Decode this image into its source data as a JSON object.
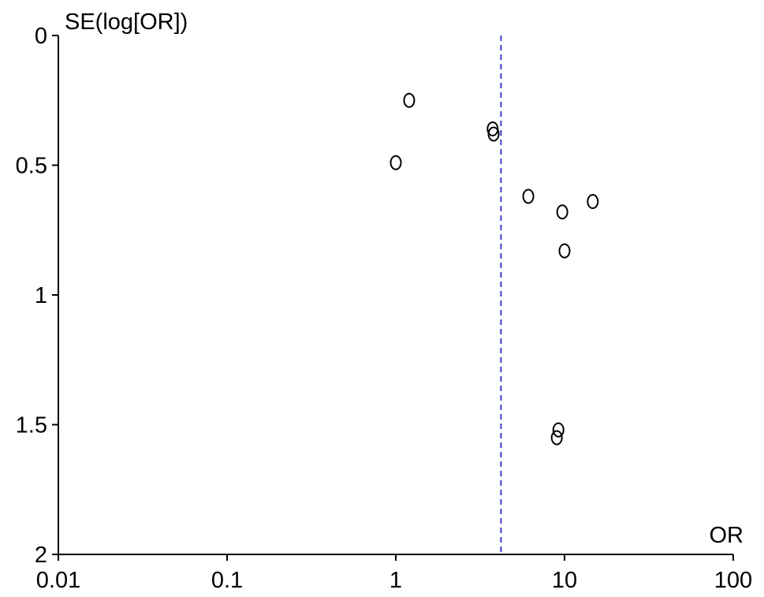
{
  "chart_data": {
    "type": "scatter",
    "title": "",
    "xlabel": "OR",
    "ylabel": "SE(log[OR])",
    "x_scale": "log",
    "y_reversed": true,
    "xlim": [
      0.01,
      100
    ],
    "ylim": [
      0,
      2
    ],
    "x_ticks": [
      "0.01",
      "0.1",
      "1",
      "10",
      "100"
    ],
    "x_tick_values": [
      0.01,
      0.1,
      1,
      10,
      100
    ],
    "y_ticks": [
      "0",
      "0.5",
      "1",
      "1.5",
      "2"
    ],
    "y_tick_values": [
      0,
      0.5,
      1,
      1.5,
      2
    ],
    "grid": false,
    "legend": "none",
    "reference_line": {
      "x": 4.2,
      "style": "dashed",
      "color": "#3b3bd6"
    },
    "marker": "open-circle",
    "points": [
      {
        "x": 1.2,
        "y": 0.25
      },
      {
        "x": 3.75,
        "y": 0.36
      },
      {
        "x": 3.8,
        "y": 0.38
      },
      {
        "x": 1.0,
        "y": 0.49
      },
      {
        "x": 6.1,
        "y": 0.62
      },
      {
        "x": 14.7,
        "y": 0.64
      },
      {
        "x": 9.7,
        "y": 0.68
      },
      {
        "x": 10.0,
        "y": 0.83
      },
      {
        "x": 9.2,
        "y": 1.52
      },
      {
        "x": 9.0,
        "y": 1.55
      }
    ]
  }
}
